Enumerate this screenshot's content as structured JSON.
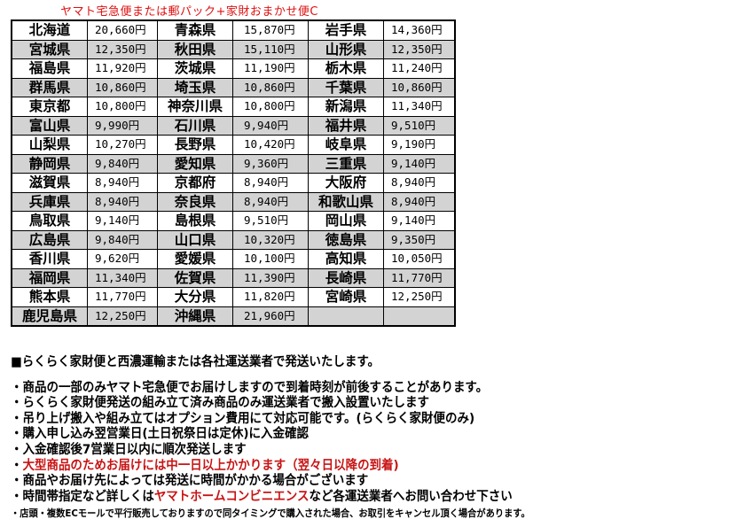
{
  "title": "ヤマト宅急便または郵パック+家財おまかせ便C",
  "rows": [
    [
      [
        "北海道",
        "20,660円"
      ],
      [
        "青森県",
        "15,870円"
      ],
      [
        "岩手県",
        "14,360円"
      ]
    ],
    [
      [
        "宮城県",
        "12,350円"
      ],
      [
        "秋田県",
        "15,110円"
      ],
      [
        "山形県",
        "12,350円"
      ]
    ],
    [
      [
        "福島県",
        "11,920円"
      ],
      [
        "茨城県",
        "11,190円"
      ],
      [
        "栃木県",
        "11,240円"
      ]
    ],
    [
      [
        "群馬県",
        "10,860円"
      ],
      [
        "埼玉県",
        "10,860円"
      ],
      [
        "千葉県",
        "10,860円"
      ]
    ],
    [
      [
        "東京都",
        "10,800円"
      ],
      [
        "神奈川県",
        "10,800円"
      ],
      [
        "新潟県",
        "11,340円"
      ]
    ],
    [
      [
        "富山県",
        "9,990円"
      ],
      [
        "石川県",
        "9,940円"
      ],
      [
        "福井県",
        "9,510円"
      ]
    ],
    [
      [
        "山梨県",
        "10,270円"
      ],
      [
        "長野県",
        "10,420円"
      ],
      [
        "岐阜県",
        "9,190円"
      ]
    ],
    [
      [
        "静岡県",
        "9,840円"
      ],
      [
        "愛知県",
        "9,360円"
      ],
      [
        "三重県",
        "9,140円"
      ]
    ],
    [
      [
        "滋賀県",
        "8,940円"
      ],
      [
        "京都府",
        "8,940円"
      ],
      [
        "大阪府",
        "8,940円"
      ]
    ],
    [
      [
        "兵庫県",
        "8,940円"
      ],
      [
        "奈良県",
        "8,940円"
      ],
      [
        "和歌山県",
        "8,940円"
      ]
    ],
    [
      [
        "鳥取県",
        "9,140円"
      ],
      [
        "島根県",
        "9,510円"
      ],
      [
        "岡山県",
        "9,140円"
      ]
    ],
    [
      [
        "広島県",
        "9,840円"
      ],
      [
        "山口県",
        "10,320円"
      ],
      [
        "徳島県",
        "9,350円"
      ]
    ],
    [
      [
        "香川県",
        "9,620円"
      ],
      [
        "愛媛県",
        "10,100円"
      ],
      [
        "高知県",
        "10,050円"
      ]
    ],
    [
      [
        "福岡県",
        "11,340円"
      ],
      [
        "佐賀県",
        "11,390円"
      ],
      [
        "長崎県",
        "11,770円"
      ]
    ],
    [
      [
        "熊本県",
        "11,770円"
      ],
      [
        "大分県",
        "11,820円"
      ],
      [
        "宮崎県",
        "12,250円"
      ]
    ],
    [
      [
        "鹿児島県",
        "12,250円"
      ],
      [
        "沖縄県",
        "21,960円"
      ],
      [
        "",
        ""
      ]
    ]
  ],
  "notes": {
    "heading": "■らくらく家財便と西濃運輸または各社運送業者で発送いたします。",
    "items": [
      "・商品の一部のみヤマト宅急便でお届けしますので到着時刻が前後することがあります。",
      "・らくらく家財便発送の組み立て済み商品のみ運送業者で搬入設置いたします",
      "・吊り上げ搬入や組み立てはオプション費用にて対応可能です。(らくらく家財便のみ)",
      "・購入申し込み翌営業日(土日祝祭日は定休)に入金確認",
      "・入金確認後7営業日以内に順次発送します"
    ],
    "red_item_bullet": "・",
    "red_item": "大型商品のためお届けには中一日以上かかります（翌々日以降の到着)",
    "item_after_red": "・商品やお届け先によっては発送に時間がかかる場合がございます",
    "contact": {
      "before": "・時間帯指定など詳しくは",
      "highlight": "ヤマトホームコンビニエンス",
      "after": "など各運送業者へお問い合わせ下さい"
    },
    "small": "・店頭・複数ECモールで平行販売しておりますので同タイミングで購入された場合、お取引をキャンセル頂く場合があります。"
  },
  "colors": {
    "title": "#e01010",
    "highlight": "#c81414",
    "stripe": "#d3d3d3"
  }
}
